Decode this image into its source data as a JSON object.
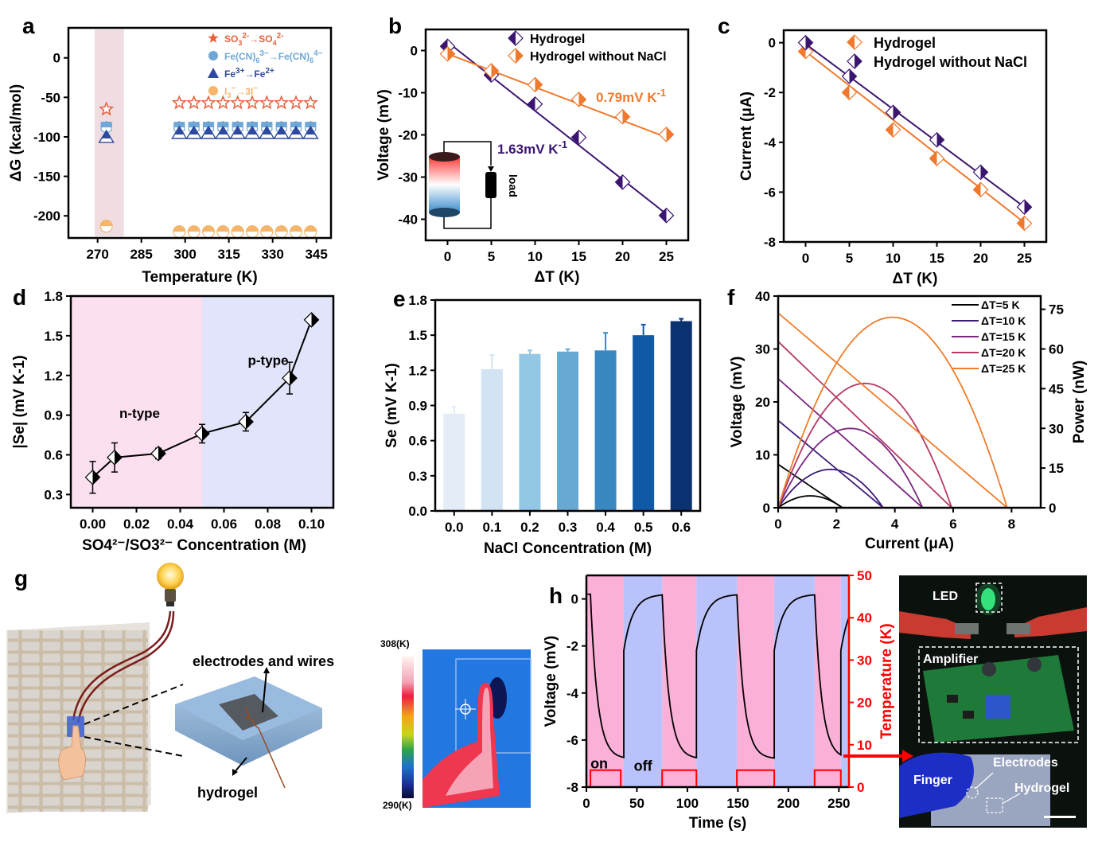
{
  "figure": {
    "panel_labels": [
      "a",
      "b",
      "c",
      "d",
      "e",
      "f",
      "g",
      "h"
    ]
  },
  "chart_data": [
    {
      "id": "a",
      "type": "scatter",
      "xlabel": "Temperature (K)",
      "ylabel": "ΔG (kcal/mol)",
      "xlim": [
        260,
        350
      ],
      "ylim": [
        -228,
        38
      ],
      "xticks": [
        270,
        285,
        300,
        315,
        330,
        345
      ],
      "yticks": [
        0,
        -50,
        -100,
        -150,
        -200
      ],
      "highlight_band": {
        "from": 269,
        "to": 279,
        "color": "#efdde2"
      },
      "series": [
        {
          "name": "SO3²⁻→SO4²⁻",
          "label_parts": [
            "SO",
            "3",
            "2-",
            "→SO",
            "4",
            "2-"
          ],
          "marker": "star",
          "color": "#e8603c",
          "x": [
            273,
            298,
            303,
            308,
            313,
            318,
            323,
            328,
            333,
            338,
            343
          ],
          "y": [
            -65,
            -57,
            -57,
            -57,
            -57,
            -57,
            -57,
            -57,
            -57,
            -57,
            -57
          ]
        },
        {
          "name": "Fe(CN)6³⁻→Fe(CN)6⁴⁻",
          "label_parts": [
            "Fe(CN)",
            "6",
            "3−",
            "→Fe(CN)",
            "6",
            "4−"
          ],
          "marker": "hexagon",
          "color": "#6fa8d6",
          "x": [
            273,
            298,
            303,
            308,
            313,
            318,
            323,
            328,
            333,
            338,
            343
          ],
          "y": [
            -88,
            -88,
            -88,
            -88,
            -88,
            -88,
            -88,
            -88,
            -88,
            -88,
            -88
          ]
        },
        {
          "name": "Fe³⁺→Fe²⁺",
          "label_parts": [
            "Fe",
            "",
            "3+",
            "→Fe",
            "",
            "2+"
          ],
          "marker": "triangle",
          "color": "#2e4a9e",
          "x": [
            273,
            298,
            303,
            308,
            313,
            318,
            323,
            328,
            333,
            338,
            343
          ],
          "y": [
            -100,
            -95,
            -95,
            -95,
            -95,
            -95,
            -95,
            -95,
            -95,
            -95,
            -95
          ]
        },
        {
          "name": "I3⁻→3I⁻",
          "label_parts": [
            "I",
            "3",
            "−",
            "→3I",
            "",
            "−"
          ],
          "marker": "circle",
          "color": "#f5b66b",
          "x": [
            273,
            298,
            303,
            308,
            313,
            318,
            323,
            328,
            333,
            338,
            343
          ],
          "y": [
            -213,
            -220,
            -220,
            -220,
            -220,
            -220,
            -220,
            -220,
            -220,
            -220,
            -220
          ]
        }
      ],
      "legend": "top-right"
    },
    {
      "id": "b",
      "type": "scatter",
      "xlabel": "ΔT (K)",
      "ylabel": "Voltage (mV)",
      "xlim": [
        -2.5,
        27.5
      ],
      "ylim": [
        -45,
        5
      ],
      "xticks": [
        0,
        5,
        10,
        15,
        20,
        25
      ],
      "yticks": [
        0,
        -10,
        -20,
        -30,
        -40
      ],
      "series": [
        {
          "name": "Hydrogel",
          "color": "#3b1670",
          "x": [
            0,
            5,
            10,
            15,
            20,
            25
          ],
          "y": [
            1,
            -5.8,
            -12.7,
            -20.6,
            -31.2,
            -39.1
          ],
          "fit": [
            2.0,
            -1.63
          ]
        },
        {
          "name": "Hydrogel without NaCl",
          "color": "#ef7a2e",
          "x": [
            0,
            5,
            10,
            15,
            20,
            25
          ],
          "y": [
            -0.8,
            -4.8,
            -8.1,
            -11.6,
            -15.7,
            -19.9
          ],
          "fit": [
            -0.8,
            -0.79
          ]
        }
      ],
      "annotations": [
        {
          "text": "0.79mV K",
          "sup": "-1",
          "color": "#ef7a2e"
        },
        {
          "text": "1.63mV K",
          "sup": "-1",
          "color": "#3b1670"
        }
      ],
      "inset_label": "load",
      "legend": "top-right"
    },
    {
      "id": "c",
      "type": "scatter",
      "xlabel": "ΔT (K)",
      "ylabel": "Current (μA)",
      "xlim": [
        -2.5,
        27.5
      ],
      "ylim": [
        -8,
        0.5
      ],
      "xticks": [
        0,
        5,
        10,
        15,
        20,
        25
      ],
      "yticks": [
        0,
        -2,
        -4,
        -6,
        -8
      ],
      "series": [
        {
          "name": "Hydrogel",
          "color": "#ef7a2e",
          "x": [
            0,
            5,
            10,
            15,
            20,
            25
          ],
          "y": [
            -0.35,
            -2.0,
            -3.5,
            -4.65,
            -5.9,
            -7.25
          ],
          "fit": [
            -0.35,
            -0.275
          ]
        },
        {
          "name": "Hydrogel without NaCl",
          "color": "#3b1670",
          "x": [
            0,
            5,
            10,
            15,
            20,
            25
          ],
          "y": [
            0,
            -1.35,
            -2.8,
            -3.9,
            -5.2,
            -6.6
          ],
          "fit": [
            -0.05,
            -0.262
          ]
        }
      ],
      "legend": "top-right"
    },
    {
      "id": "d",
      "type": "line",
      "xlabel": "SO4²⁻/SO3²⁻ Concentration (M)",
      "ylabel": "|Se| (mV K-1)",
      "xlim": [
        -0.01,
        0.11
      ],
      "ylim": [
        0.2,
        1.8
      ],
      "xticks": [
        "0.00",
        "0.02",
        "0.04",
        "0.06",
        "0.08",
        "0.10"
      ],
      "yticks": [
        "0.3",
        "0.6",
        "0.9",
        "1.2",
        "1.5",
        "1.8"
      ],
      "regions": [
        {
          "label": "n-type",
          "from": -0.01,
          "to": 0.05,
          "color": "#fce0ef"
        },
        {
          "label": "p-type",
          "from": 0.05,
          "to": 0.11,
          "color": "#e2e4fb"
        }
      ],
      "x": [
        0.0,
        0.01,
        0.03,
        0.05,
        0.07,
        0.09,
        0.1
      ],
      "y": [
        0.43,
        0.58,
        0.61,
        0.76,
        0.85,
        1.18,
        1.62
      ],
      "err": [
        0.12,
        0.11,
        0.04,
        0.07,
        0.07,
        0.12,
        0.02
      ]
    },
    {
      "id": "e",
      "type": "bar",
      "xlabel": "NaCl Concentration (M)",
      "ylabel": "Se (mV K-1)",
      "ylim": [
        0,
        1.8
      ],
      "yticks": [
        "0.0",
        "0.3",
        "0.6",
        "0.9",
        "1.2",
        "1.5",
        "1.8"
      ],
      "categories": [
        "0.0",
        "0.1",
        "0.2",
        "0.3",
        "0.4",
        "0.5",
        "0.6"
      ],
      "values": [
        0.83,
        1.21,
        1.34,
        1.36,
        1.37,
        1.5,
        1.62
      ],
      "err": [
        0.06,
        0.12,
        0.03,
        0.02,
        0.15,
        0.09,
        0.02
      ],
      "colors": [
        "#e3ecf7",
        "#d3e3f3",
        "#92c7e5",
        "#67a9d3",
        "#3a88c0",
        "#1059a6",
        "#0b3270"
      ]
    },
    {
      "id": "f",
      "type": "line",
      "xlabel": "Current (μA)",
      "ylabel": "Voltage (mV)",
      "y2label": "Power (nW)",
      "xlim": [
        0,
        9
      ],
      "ylim": [
        0,
        40
      ],
      "y2lim": [
        0,
        80
      ],
      "xticks": [
        0,
        2,
        4,
        6,
        8
      ],
      "yticks": [
        0,
        10,
        20,
        30,
        40
      ],
      "y2ticks": [
        0,
        15,
        30,
        45,
        60,
        75
      ],
      "series": [
        {
          "name": "ΔT=5 K",
          "color": "#000000",
          "voc": 8.2,
          "isc": 2.2,
          "pmax": 4.5
        },
        {
          "name": "ΔT=10 K",
          "color": "#3d1a78",
          "voc": 16.5,
          "isc": 3.6,
          "pmax": 14.5
        },
        {
          "name": "ΔT=15 K",
          "color": "#7a2580",
          "voc": 24.4,
          "isc": 4.95,
          "pmax": 30
        },
        {
          "name": "ΔT=20 K",
          "color": "#b43a62",
          "voc": 31.4,
          "isc": 5.95,
          "pmax": 47
        },
        {
          "name": "ΔT=25 K",
          "color": "#ee7d2c",
          "voc": 36.8,
          "isc": 7.85,
          "pmax": 72
        }
      ],
      "legend": "top-right"
    },
    {
      "id": "h",
      "type": "line",
      "xlabel": "Time (s)",
      "ylabel": "Voltage (mV)",
      "y2label": "Temperature (K)",
      "xlim": [
        0,
        260
      ],
      "ylim": [
        -8,
        1
      ],
      "y2lim": [
        0,
        50
      ],
      "xticks": [
        0,
        50,
        100,
        150,
        200,
        250
      ],
      "yticks": [
        0,
        -2,
        -4,
        -6,
        -8
      ],
      "y2ticks": [
        0,
        10,
        20,
        30,
        40,
        50
      ],
      "on_intervals": [
        [
          0,
          37
        ],
        [
          75,
          109
        ],
        [
          149,
          186
        ],
        [
          226,
          252
        ]
      ],
      "off_intervals": [
        [
          37,
          75
        ],
        [
          109,
          149
        ],
        [
          186,
          226
        ],
        [
          252,
          260
        ]
      ],
      "on_color": "#fbb0d8",
      "off_color": "#b9c2fb",
      "voltage_min": -6.8,
      "voltage_max": 0.2,
      "temperature_high": 4,
      "temperature_low": 0,
      "temp_pulses": [
        [
          4,
          34
        ],
        [
          75,
          109
        ],
        [
          149,
          186
        ],
        [
          226,
          252
        ]
      ],
      "annotations": [
        "on",
        "off"
      ],
      "axis_color": "#ff0000"
    }
  ],
  "panel_g": {
    "labels": {
      "electrodes": "electrodes and wires",
      "hydrogel": "hydrogel"
    },
    "thermal_scale": {
      "max": "308(K)",
      "min": "290(K)"
    }
  },
  "photo": {
    "labels": {
      "led": "LED",
      "amplifier": "Amplifier",
      "finger": "Finger",
      "electrodes": "Electrodes",
      "hydrogel": "Hydrogel"
    }
  }
}
